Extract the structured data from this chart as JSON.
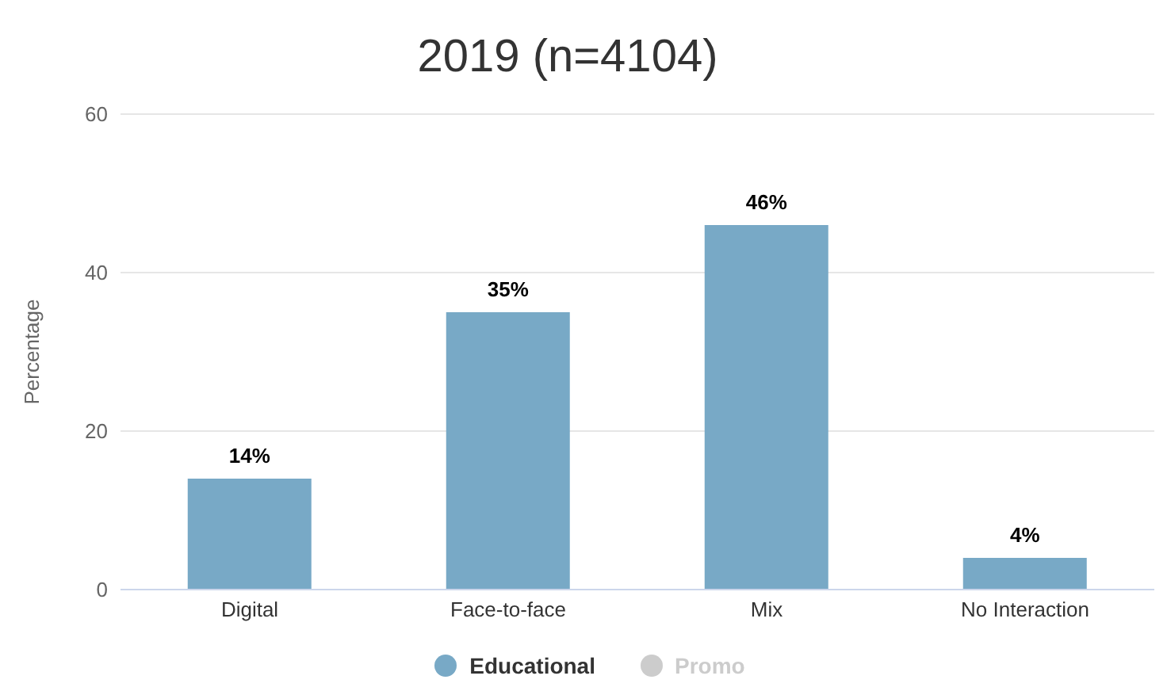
{
  "chart_data": {
    "type": "bar",
    "title": "2019 (n=4104)",
    "ylabel": "Percentage",
    "categories": [
      "Digital",
      "Face-to-face",
      "Mix",
      "No Interaction"
    ],
    "series": [
      {
        "name": "Educational",
        "color": "#78a9c6",
        "values": [
          14,
          35,
          46,
          4
        ],
        "value_labels": [
          "14%",
          "35%",
          "46%",
          "4%"
        ]
      },
      {
        "name": "Promo",
        "color": "#cccccc",
        "values": [
          null,
          null,
          null,
          null
        ]
      }
    ],
    "ylim": [
      0,
      60
    ],
    "yticks": [
      0,
      20,
      40,
      60
    ],
    "grid": "y",
    "legend": "bottom"
  }
}
